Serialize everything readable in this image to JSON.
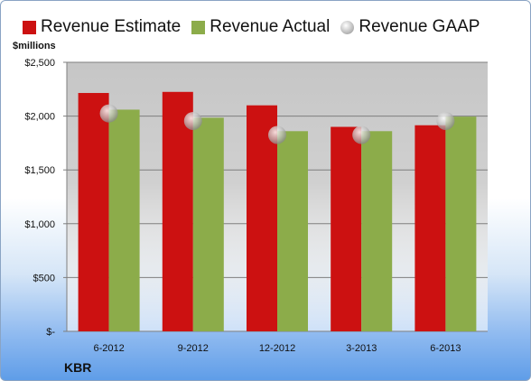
{
  "chart_data": {
    "type": "bar",
    "categories": [
      "6-2012",
      "9-2012",
      "12-2012",
      "3-2013",
      "6-2013"
    ],
    "series": [
      {
        "name": "Revenue Estimate",
        "values": [
          2215,
          2225,
          2100,
          1900,
          1915
        ],
        "color": "#cc1111",
        "kind": "bar"
      },
      {
        "name": "Revenue Actual",
        "values": [
          2060,
          1985,
          1860,
          1860,
          1995
        ],
        "color": "#8cac4a",
        "kind": "bar"
      },
      {
        "name": "Revenue GAAP",
        "values": [
          2025,
          1955,
          1825,
          1825,
          1955
        ],
        "color": "#b9b9b9",
        "kind": "marker"
      }
    ],
    "ylim": [
      0,
      2500
    ],
    "yticks": [
      0,
      500,
      1000,
      1500,
      2000,
      2500
    ],
    "ytick_labels": [
      "$-",
      "$500",
      "$1,000",
      "$1,500",
      "$2,000",
      "$2,500"
    ],
    "ylabel": "$millions",
    "company": "KBR",
    "legend_position": "top",
    "grid": true
  }
}
